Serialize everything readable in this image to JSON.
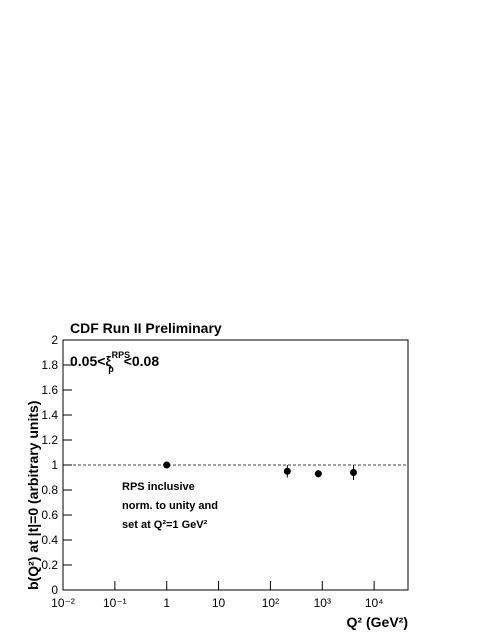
{
  "chart_data": {
    "type": "scatter",
    "title": "CDF Run II Preliminary",
    "annotation_parts": [
      "0.05<ξ",
      "RPS",
      "p",
      "<0.08"
    ],
    "notes": [
      "RPS inclusive",
      "norm. to unity and",
      "set at Q²=1 GeV²"
    ],
    "x_label": "Q² (GeV²)",
    "y_label": "b(Q²) at |t|=0 (arbitrary units)",
    "log_x": true,
    "xlim": [
      0.01,
      45000
    ],
    "ylim": [
      0,
      2
    ],
    "xticks": [
      {
        "value": 0.01,
        "label": "10⁻²"
      },
      {
        "value": 0.1,
        "label": "10⁻¹"
      },
      1,
      10,
      {
        "value": 100,
        "label": "10²"
      },
      {
        "value": 1000,
        "label": "10³"
      },
      {
        "value": 10000,
        "label": "10⁴"
      }
    ],
    "yticks": [
      0,
      0.2,
      0.4,
      0.6,
      0.8,
      1,
      1.2,
      1.4,
      1.6,
      1.8,
      2
    ],
    "reference_line": 1,
    "series": [
      {
        "color": "#000000",
        "x": [
          1,
          212,
          840,
          4000
        ],
        "values": [
          1.0,
          0.95,
          0.93,
          0.94
        ],
        "errors": [
          0.0,
          0.05,
          0.03,
          0.06
        ]
      }
    ]
  }
}
